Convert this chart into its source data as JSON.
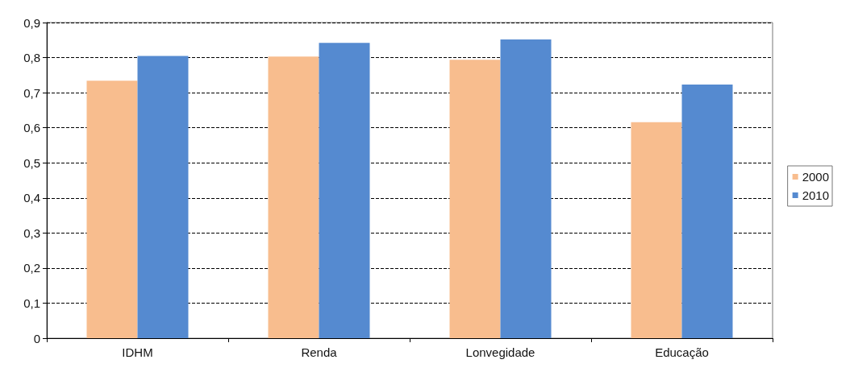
{
  "chart_data": {
    "type": "bar",
    "categories": [
      "IDHM",
      "Renda",
      "Lonvegidade",
      "Educação"
    ],
    "series": [
      {
        "name": "2000",
        "color": "#f8bd8e",
        "values": [
          0.734,
          0.803,
          0.794,
          0.616
        ]
      },
      {
        "name": "2010",
        "color": "#558ad0",
        "values": [
          0.805,
          0.842,
          0.852,
          0.723
        ]
      }
    ],
    "ylim": [
      0,
      0.9
    ],
    "yticks": [
      {
        "value": 0,
        "label": "0"
      },
      {
        "value": 0.1,
        "label": "0,1"
      },
      {
        "value": 0.2,
        "label": "0,2"
      },
      {
        "value": 0.3,
        "label": "0,3"
      },
      {
        "value": 0.4,
        "label": "0,4"
      },
      {
        "value": 0.5,
        "label": "0,5"
      },
      {
        "value": 0.6,
        "label": "0,6"
      },
      {
        "value": 0.7,
        "label": "0,7"
      },
      {
        "value": 0.8,
        "label": "0,8"
      },
      {
        "value": 0.9,
        "label": "0,9"
      }
    ],
    "grid": "y",
    "legend": "right"
  }
}
